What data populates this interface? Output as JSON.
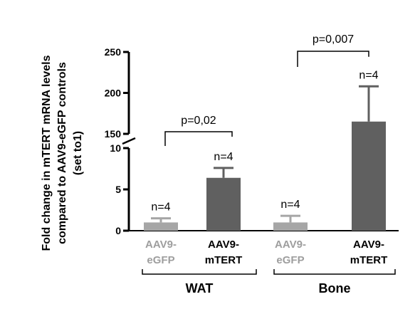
{
  "chart_data": {
    "type": "bar",
    "ylabel_lines": [
      "Fold change in mTERT mRNA levels",
      "compared to AAV9-eGFP controls",
      "(set to1)"
    ],
    "y_axis_break": {
      "lower_range": [
        0,
        10
      ],
      "upper_range": [
        150,
        250
      ]
    },
    "lower_ticks": [
      0,
      5,
      10
    ],
    "upper_ticks": [
      150,
      200,
      250
    ],
    "colors": {
      "eGFP": "#a6a6a6",
      "mTERT": "#606060",
      "eGFP_label": "#9e9e9e",
      "mTERT_label": "#000000"
    },
    "bars": [
      {
        "label_top": "AAV9-",
        "label_bottom": "eGFP",
        "group": "WAT",
        "value": 1.0,
        "error": 0.5,
        "n": "n=4",
        "kind": "eGFP"
      },
      {
        "label_top": "AAV9-",
        "label_bottom": "mTERT",
        "group": "WAT",
        "value": 6.4,
        "error": 1.2,
        "n": "n=4",
        "kind": "mTERT"
      },
      {
        "label_top": "AAV9-",
        "label_bottom": "eGFP",
        "group": "Bone",
        "value": 1.0,
        "error": 0.8,
        "n": "n=4",
        "kind": "eGFP"
      },
      {
        "label_top": "AAV9-",
        "label_bottom": "mTERT",
        "group": "Bone",
        "value": 165,
        "error": 43,
        "n": "n=4",
        "kind": "mTERT"
      }
    ],
    "groups": [
      "WAT",
      "Bone"
    ],
    "comparisons": [
      {
        "group": "WAT",
        "label": "p=0,02"
      },
      {
        "group": "Bone",
        "label": "p=0,007"
      }
    ]
  }
}
